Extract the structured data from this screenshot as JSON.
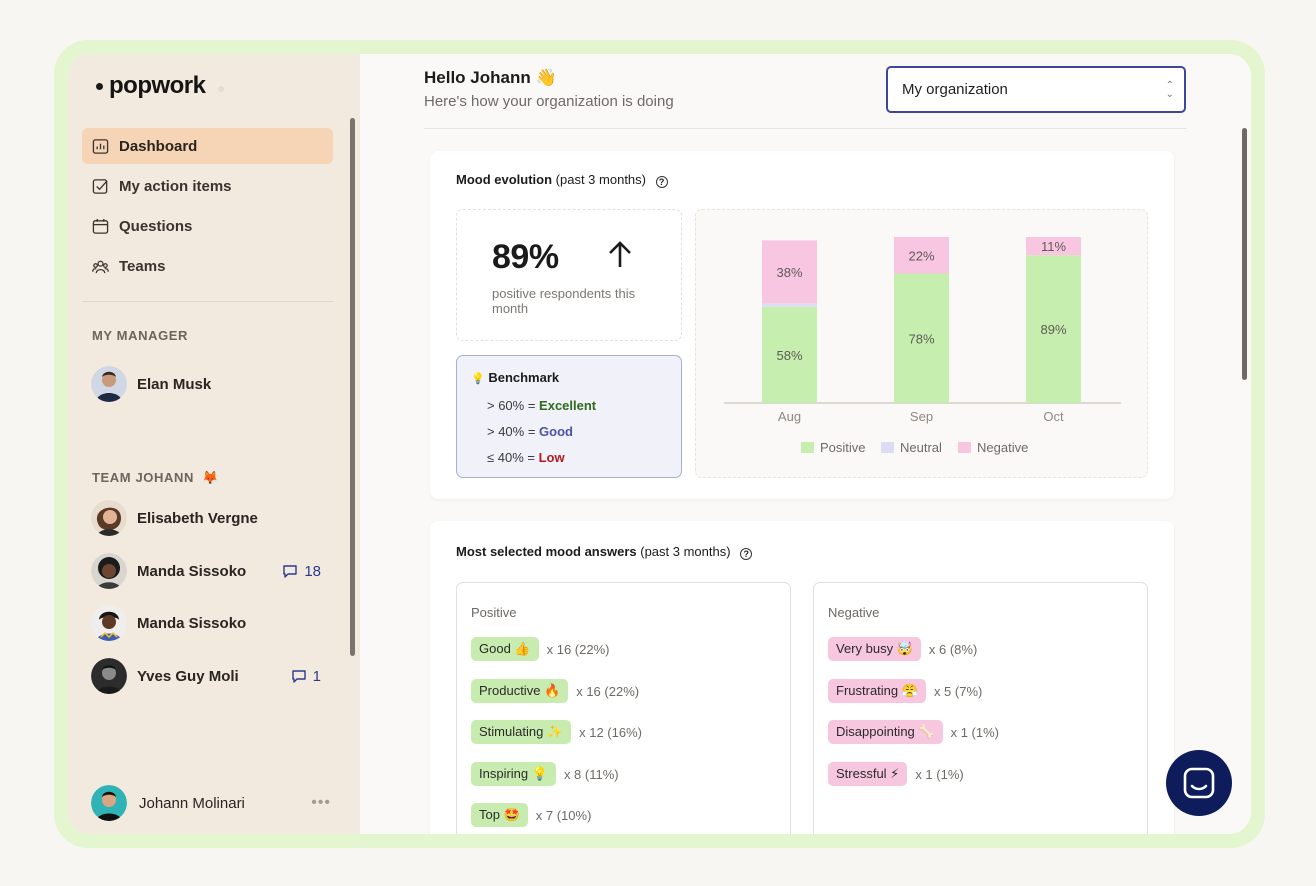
{
  "brand": {
    "name": "popwork"
  },
  "nav": [
    {
      "label": "Dashboard",
      "icon": "chart-icon",
      "active": true
    },
    {
      "label": "My action items",
      "icon": "checkbox-icon",
      "active": false
    },
    {
      "label": "Questions",
      "icon": "calendar-icon",
      "active": false
    },
    {
      "label": "Teams",
      "icon": "team-icon",
      "active": false
    }
  ],
  "manager": {
    "section_label": "MY MANAGER",
    "name": "Elan Musk"
  },
  "team": {
    "section_label": "TEAM JOHANN",
    "section_emoji": "🦊",
    "members": [
      {
        "name": "Elisabeth Vergne",
        "comments": null
      },
      {
        "name": "Manda Sissoko",
        "comments": "18"
      },
      {
        "name": "Manda Sissoko",
        "comments": null
      },
      {
        "name": "Yves Guy Moli",
        "comments": "1"
      }
    ]
  },
  "current_user": {
    "name": "Johann Molinari",
    "menu": "•••"
  },
  "header": {
    "greeting": "Hello Johann 👋",
    "subtitle": "Here's how your organization is doing",
    "org_select_value": "My organization"
  },
  "mood": {
    "title": "Mood evolution",
    "period": "(past 3 months)",
    "stat_value": "89%",
    "stat_desc": "positive respondents this month",
    "benchmark": {
      "title": "Benchmark",
      "rows": [
        {
          "prefix": "> 60% = ",
          "level": "Excellent"
        },
        {
          "prefix": "> 40% = ",
          "level": "Good"
        },
        {
          "prefix": "≤ 40% = ",
          "level": "Low"
        }
      ]
    }
  },
  "chart_data": {
    "type": "bar",
    "stacked": true,
    "categories": [
      "Aug",
      "Sep",
      "Oct"
    ],
    "series": [
      {
        "name": "Positive",
        "color": "#c6eeae",
        "values": [
          58,
          78,
          89
        ],
        "labels": [
          "58%",
          "78%",
          "89%"
        ]
      },
      {
        "name": "Neutral",
        "color": "#dcdcf7",
        "values": [
          2,
          0,
          0
        ],
        "labels": [
          "",
          "",
          ""
        ]
      },
      {
        "name": "Negative",
        "color": "#f8c6e1",
        "values": [
          38,
          22,
          11
        ],
        "labels": [
          "38%",
          "22%",
          "11%"
        ]
      }
    ],
    "ylim": [
      0,
      100
    ],
    "legend": "bottom"
  },
  "answers": {
    "title": "Most selected mood answers",
    "period": "(past 3 months)",
    "positive": {
      "header": "Positive",
      "items": [
        {
          "label": "Good 👍",
          "count": "x 16 (22%)"
        },
        {
          "label": "Productive 🔥",
          "count": "x 16 (22%)"
        },
        {
          "label": "Stimulating ✨",
          "count": "x 12 (16%)"
        },
        {
          "label": "Inspiring 💡",
          "count": "x 8 (11%)"
        },
        {
          "label": "Top 🤩",
          "count": "x 7 (10%)"
        }
      ]
    },
    "negative": {
      "header": "Negative",
      "items": [
        {
          "label": "Very busy 🤯",
          "count": "x 6 (8%)"
        },
        {
          "label": "Frustrating 😤",
          "count": "x 5 (7%)"
        },
        {
          "label": "Disappointing 🦴",
          "count": "x 1 (1%)"
        },
        {
          "label": "Stressful ⚡",
          "count": "x 1 (1%)"
        }
      ]
    }
  }
}
